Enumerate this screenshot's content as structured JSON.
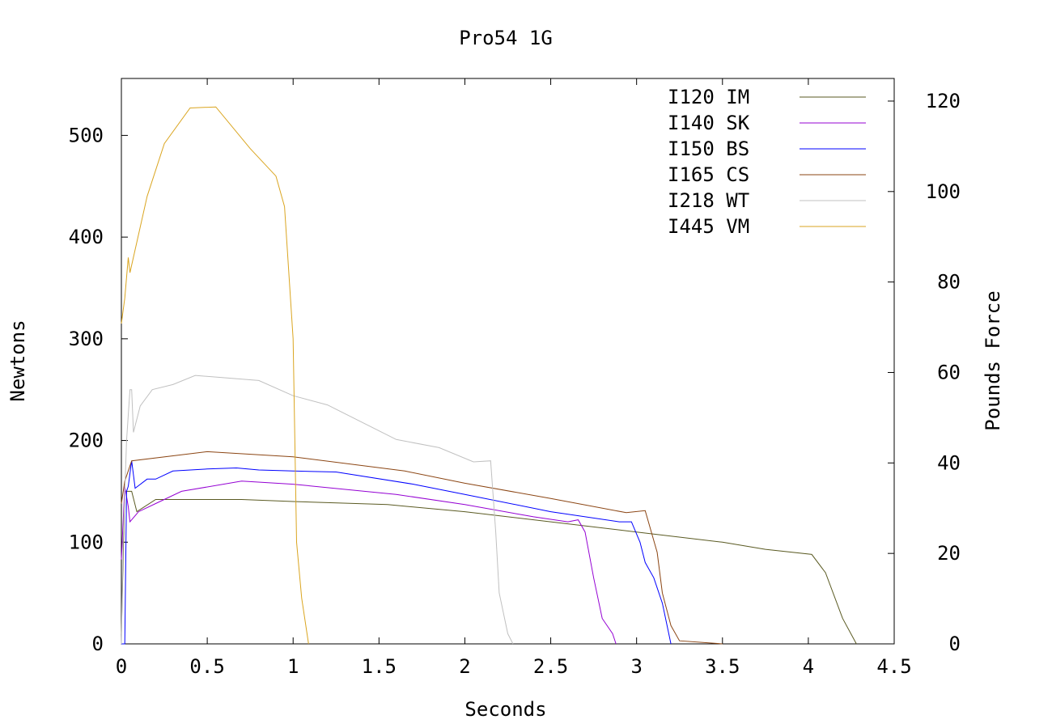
{
  "chart_data": {
    "type": "line",
    "title": "Pro54 1G",
    "xlabel": "Seconds",
    "ylabel": "Newtons",
    "y2label": "Pounds Force",
    "xlim": [
      0,
      4.5
    ],
    "ylim": [
      0,
      556
    ],
    "y2lim": [
      0,
      125
    ],
    "xticks": [
      0,
      0.5,
      1,
      1.5,
      2,
      2.5,
      3,
      3.5,
      4,
      4.5
    ],
    "xtick_labels": [
      "0",
      "0.5",
      "1",
      "1.5",
      "2",
      "2.5",
      "3",
      "3.5",
      "4",
      "4.5"
    ],
    "yticks": [
      0,
      100,
      200,
      300,
      400,
      500
    ],
    "ytick_labels": [
      "0",
      "100",
      "200",
      "300",
      "400",
      "500"
    ],
    "y2ticks": [
      0,
      20,
      40,
      60,
      80,
      100,
      120
    ],
    "y2tick_labels": [
      "0",
      "20",
      "40",
      "60",
      "80",
      "100",
      "120"
    ],
    "grid": false,
    "legend_position": "top-right",
    "series": [
      {
        "name": "I120 IM",
        "color": "#5a5a22",
        "points": [
          [
            0,
            10
          ],
          [
            0.02,
            150
          ],
          [
            0.06,
            150
          ],
          [
            0.09,
            130
          ],
          [
            0.2,
            142
          ],
          [
            0.7,
            142
          ],
          [
            1.0,
            140
          ],
          [
            1.55,
            137
          ],
          [
            2.0,
            130
          ],
          [
            2.5,
            120
          ],
          [
            3.0,
            110
          ],
          [
            3.5,
            100
          ],
          [
            3.75,
            93
          ],
          [
            4.02,
            88
          ],
          [
            4.1,
            70
          ],
          [
            4.2,
            25
          ],
          [
            4.28,
            0
          ]
        ]
      },
      {
        "name": "I140 SK",
        "color": "#9400d3",
        "points": [
          [
            0,
            83
          ],
          [
            0.02,
            155
          ],
          [
            0.04,
            135
          ],
          [
            0.05,
            120
          ],
          [
            0.1,
            130
          ],
          [
            0.2,
            138
          ],
          [
            0.35,
            150
          ],
          [
            0.7,
            160
          ],
          [
            1.0,
            157
          ],
          [
            1.6,
            147
          ],
          [
            2.0,
            137
          ],
          [
            2.4,
            125
          ],
          [
            2.6,
            120
          ],
          [
            2.66,
            122
          ],
          [
            2.7,
            110
          ],
          [
            2.75,
            65
          ],
          [
            2.8,
            25
          ],
          [
            2.86,
            10
          ],
          [
            2.88,
            0
          ]
        ]
      },
      {
        "name": "I150 BS",
        "color": "#0000ff",
        "points": [
          [
            0,
            0
          ],
          [
            0.02,
            0
          ],
          [
            0.03,
            150
          ],
          [
            0.04,
            155
          ],
          [
            0.06,
            180
          ],
          [
            0.08,
            153
          ],
          [
            0.15,
            162
          ],
          [
            0.2,
            162
          ],
          [
            0.3,
            170
          ],
          [
            0.5,
            172
          ],
          [
            0.67,
            173
          ],
          [
            0.8,
            171
          ],
          [
            1.0,
            170
          ],
          [
            1.25,
            169
          ],
          [
            1.7,
            157
          ],
          [
            2.0,
            147
          ],
          [
            2.5,
            130
          ],
          [
            2.9,
            120
          ],
          [
            2.97,
            120
          ],
          [
            3.02,
            100
          ],
          [
            3.05,
            80
          ],
          [
            3.1,
            65
          ],
          [
            3.15,
            40
          ],
          [
            3.2,
            0
          ]
        ]
      },
      {
        "name": "I165 CS",
        "color": "#8b4513",
        "points": [
          [
            0,
            138
          ],
          [
            0.02,
            160
          ],
          [
            0.06,
            180
          ],
          [
            0.5,
            189
          ],
          [
            1.0,
            184
          ],
          [
            1.65,
            170
          ],
          [
            2.0,
            158
          ],
          [
            2.5,
            143
          ],
          [
            2.94,
            129
          ],
          [
            3.05,
            131
          ],
          [
            3.12,
            90
          ],
          [
            3.15,
            50
          ],
          [
            3.2,
            18
          ],
          [
            3.25,
            3
          ],
          [
            3.5,
            0
          ]
        ]
      },
      {
        "name": "I218 WT",
        "color": "#c0c0c0",
        "points": [
          [
            0,
            0
          ],
          [
            0.01,
            100
          ],
          [
            0.03,
            200
          ],
          [
            0.05,
            250
          ],
          [
            0.06,
            250
          ],
          [
            0.07,
            208
          ],
          [
            0.11,
            234
          ],
          [
            0.18,
            250
          ],
          [
            0.3,
            255
          ],
          [
            0.43,
            264
          ],
          [
            0.8,
            259
          ],
          [
            1.0,
            244
          ],
          [
            1.2,
            235
          ],
          [
            1.6,
            201
          ],
          [
            1.85,
            193
          ],
          [
            2.05,
            179
          ],
          [
            2.15,
            180
          ],
          [
            2.18,
            110
          ],
          [
            2.2,
            50
          ],
          [
            2.25,
            10
          ],
          [
            2.28,
            0
          ]
        ]
      },
      {
        "name": "I445 VM",
        "color": "#daa520",
        "points": [
          [
            0,
            315
          ],
          [
            0.02,
            340
          ],
          [
            0.04,
            380
          ],
          [
            0.05,
            365
          ],
          [
            0.15,
            440
          ],
          [
            0.25,
            492
          ],
          [
            0.4,
            527
          ],
          [
            0.55,
            528
          ],
          [
            0.75,
            487
          ],
          [
            0.9,
            460
          ],
          [
            0.95,
            430
          ],
          [
            1.0,
            300
          ],
          [
            1.02,
            100
          ],
          [
            1.05,
            45
          ],
          [
            1.09,
            0
          ]
        ]
      }
    ]
  }
}
